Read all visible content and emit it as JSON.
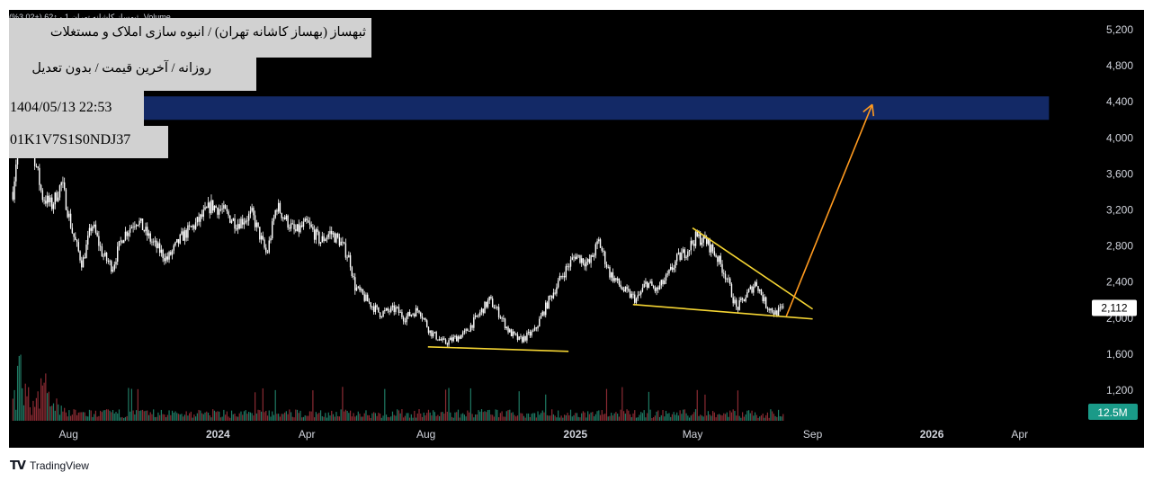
{
  "symbol_header": "ثبهساز کاشانه تهران 1 ·  ↑62 (+3.02%)",
  "volume_label": "Volume",
  "info": {
    "title": "ثبهساز (بهساز کاشانه تهران) / انبوه سازی املاک و مستغلات",
    "subtitle": "روزانه / آخرین قیمت / بدون تعدیل",
    "datetime": "1404/05/13 22:53",
    "code": "01K1V7S1S0NDJ37"
  },
  "branding": {
    "logo": "tradingview-logo",
    "text": "TradingView"
  },
  "colors": {
    "background": "#000000",
    "candles": "#ffffff",
    "target_zone": "#132966",
    "trendline": "#f5d533",
    "arrow": "#ff9a1f",
    "volume_up": "#1f7a64",
    "volume_down": "#8b2b33",
    "price_tag": "#ffffff",
    "volume_tag": "#1a9a88"
  },
  "chart_data": {
    "type": "candlestick",
    "y_axis": {
      "ticks": [
        "5,200",
        "4,800",
        "4,400",
        "4,000",
        "3,600",
        "3,200",
        "2,800",
        "2,400",
        "2,000",
        "1,600",
        "1,200"
      ],
      "tick_values": [
        5200,
        4800,
        4400,
        4000,
        3600,
        3200,
        2800,
        2400,
        2000,
        1600,
        1200
      ],
      "ylim": [
        860,
        5420
      ]
    },
    "x_axis": {
      "labels": [
        "Aug",
        "2024",
        "Apr",
        "Aug",
        "2025",
        "May",
        "Sep",
        "2026",
        "Apr"
      ],
      "label_dates": [
        "2023-08-01",
        "2024-01-01",
        "2024-04-01",
        "2024-08-01",
        "2025-01-01",
        "2025-05-01",
        "2025-09-01",
        "2026-01-01",
        "2026-04-01"
      ],
      "bold": [
        "2024",
        "2025",
        "2026"
      ],
      "range": [
        "2023-06-01",
        "2026-06-01"
      ]
    },
    "last_price": {
      "label": "2,112",
      "value": 2112
    },
    "volume_last": {
      "label": "12.5M"
    },
    "price_path": [
      [
        "2023-06-05",
        3400
      ],
      [
        "2023-06-15",
        4450
      ],
      [
        "2023-06-25",
        3900
      ],
      [
        "2023-07-05",
        3350
      ],
      [
        "2023-07-15",
        3250
      ],
      [
        "2023-07-25",
        3500
      ],
      [
        "2023-08-05",
        2950
      ],
      [
        "2023-08-15",
        2600
      ],
      [
        "2023-08-25",
        3050
      ],
      [
        "2023-09-05",
        2700
      ],
      [
        "2023-09-15",
        2560
      ],
      [
        "2023-09-25",
        2900
      ],
      [
        "2023-10-10",
        3100
      ],
      [
        "2023-10-25",
        2850
      ],
      [
        "2023-11-10",
        2650
      ],
      [
        "2023-11-25",
        2900
      ],
      [
        "2023-12-10",
        3050
      ],
      [
        "2023-12-25",
        3250
      ],
      [
        "2024-01-05",
        3200
      ],
      [
        "2024-01-20",
        3050
      ],
      [
        "2024-02-05",
        3150
      ],
      [
        "2024-02-20",
        2700
      ],
      [
        "2024-03-01",
        3250
      ],
      [
        "2024-03-10",
        3100
      ],
      [
        "2024-03-20",
        2950
      ],
      [
        "2024-04-01",
        3050
      ],
      [
        "2024-04-15",
        2850
      ],
      [
        "2024-04-25",
        2950
      ],
      [
        "2024-05-05",
        2850
      ],
      [
        "2024-05-15",
        2650
      ],
      [
        "2024-05-20",
        2350
      ],
      [
        "2024-06-01",
        2200
      ],
      [
        "2024-06-15",
        2050
      ],
      [
        "2024-07-01",
        2100
      ],
      [
        "2024-07-10",
        2000
      ],
      [
        "2024-07-25",
        2100
      ],
      [
        "2024-08-05",
        1850
      ],
      [
        "2024-08-20",
        1720
      ],
      [
        "2024-09-10",
        1830
      ],
      [
        "2024-09-25",
        2050
      ],
      [
        "2024-10-05",
        2200
      ],
      [
        "2024-10-15",
        2050
      ],
      [
        "2024-10-25",
        1850
      ],
      [
        "2024-11-05",
        1750
      ],
      [
        "2024-11-20",
        1850
      ],
      [
        "2024-12-05",
        2200
      ],
      [
        "2024-12-20",
        2500
      ],
      [
        "2025-01-01",
        2700
      ],
      [
        "2025-01-15",
        2600
      ],
      [
        "2025-01-25",
        2850
      ],
      [
        "2025-02-05",
        2500
      ],
      [
        "2025-02-20",
        2300
      ],
      [
        "2025-03-05",
        2200
      ],
      [
        "2025-03-15",
        2400
      ],
      [
        "2025-03-25",
        2300
      ],
      [
        "2025-04-05",
        2450
      ],
      [
        "2025-04-15",
        2650
      ],
      [
        "2025-04-25",
        2750
      ],
      [
        "2025-05-05",
        2900
      ],
      [
        "2025-05-15",
        2850
      ],
      [
        "2025-05-25",
        2700
      ],
      [
        "2025-06-05",
        2450
      ],
      [
        "2025-06-15",
        2100
      ],
      [
        "2025-06-25",
        2250
      ],
      [
        "2025-07-05",
        2400
      ],
      [
        "2025-07-15",
        2150
      ],
      [
        "2025-07-25",
        2050
      ],
      [
        "2025-08-03",
        2112
      ]
    ],
    "target_zone": {
      "from": "2023-06-01",
      "to": "2026-05-01",
      "y_low": 4200,
      "y_high": 4460
    },
    "trendlines": [
      {
        "name": "support-1",
        "points": [
          [
            "2024-08-03",
            1680
          ],
          [
            "2024-12-25",
            1630
          ]
        ]
      },
      {
        "name": "support-2",
        "points": [
          [
            "2025-03-01",
            2150
          ],
          [
            "2025-09-01",
            1990
          ]
        ]
      },
      {
        "name": "resistance",
        "points": [
          [
            "2025-05-01",
            3000
          ],
          [
            "2025-09-01",
            2100
          ]
        ]
      }
    ],
    "projection_arrow": {
      "points": [
        [
          "2025-08-05",
          2020
        ],
        [
          "2025-11-01",
          4370
        ]
      ]
    }
  }
}
